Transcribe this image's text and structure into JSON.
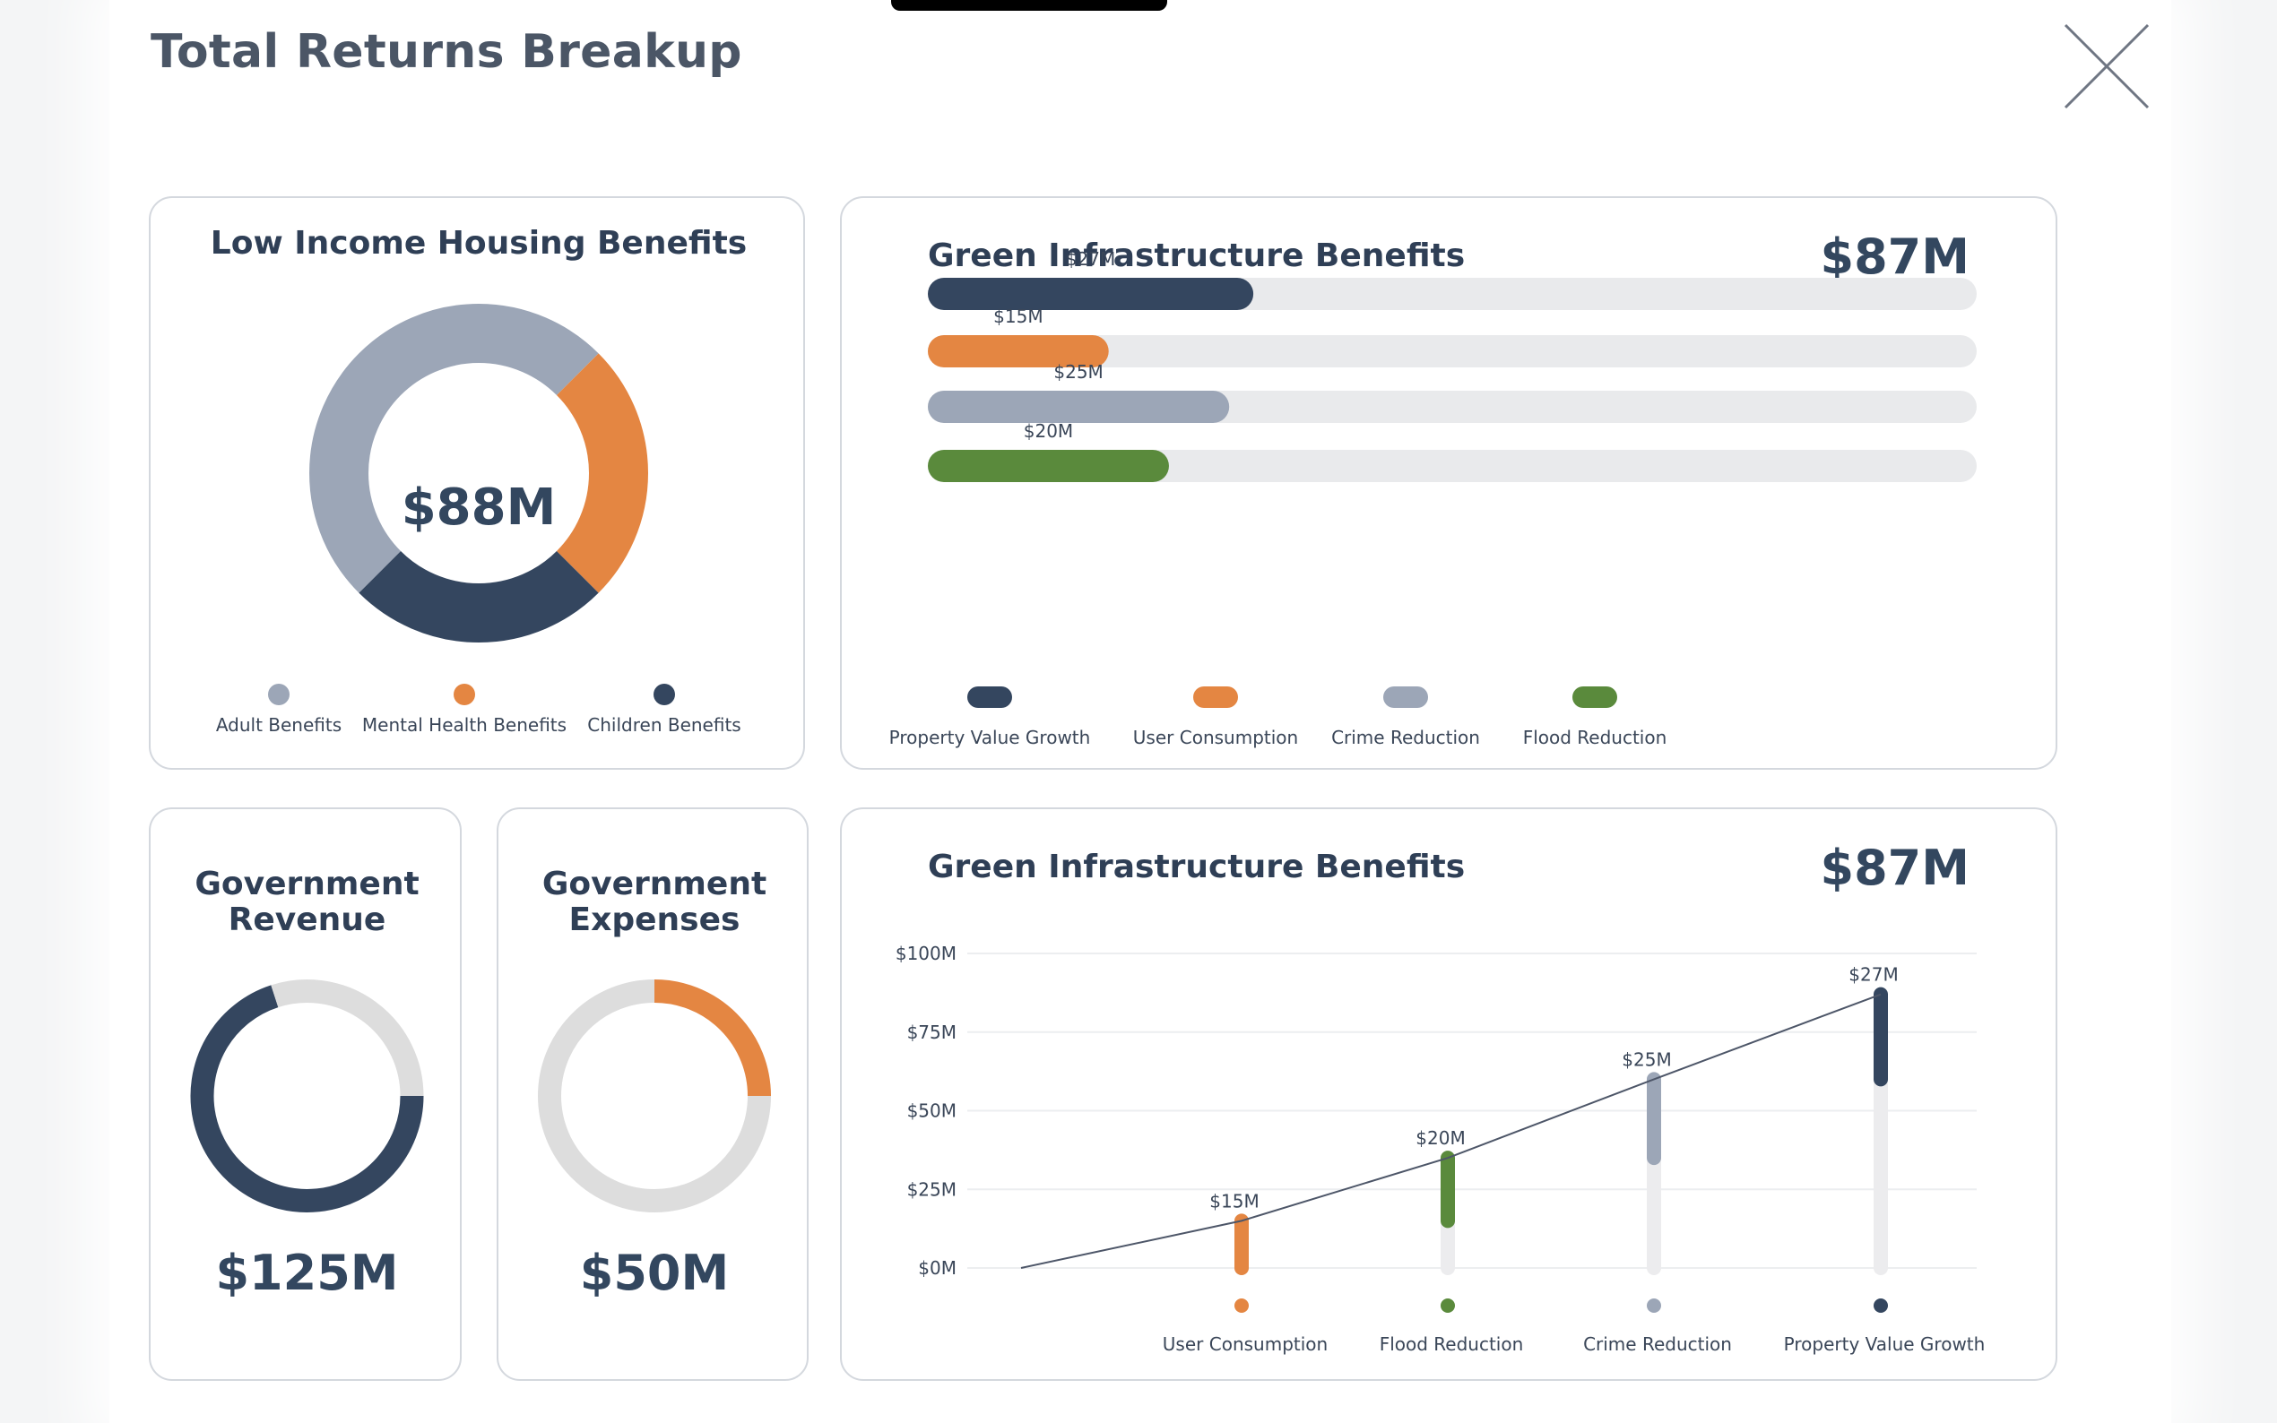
{
  "page": {
    "title": "Total Returns Breakup"
  },
  "colors": {
    "navy": "#34465f",
    "orange": "#e48642",
    "gray": "#9ca6b7",
    "green": "#5a8a3c",
    "track": "#e9eaec",
    "ring_track": "#dddddd"
  },
  "housing": {
    "title": "Low Income Housing Benefits",
    "total": "$88M",
    "legend": [
      {
        "label": "Adult Benefits",
        "color": "#9ca6b7"
      },
      {
        "label": "Mental Health Benefits",
        "color": "#e48642"
      },
      {
        "label": "Children Benefits",
        "color": "#34465f"
      }
    ]
  },
  "green_bars": {
    "title": "Green Infrastructure Benefits",
    "total": "$87M",
    "legend": [
      {
        "label": "Property Value Growth",
        "color": "#34465f"
      },
      {
        "label": "User Consumption",
        "color": "#e48642"
      },
      {
        "label": "Crime Reduction",
        "color": "#9ca6b7"
      },
      {
        "label": "Flood Reduction",
        "color": "#5a8a3c"
      }
    ]
  },
  "gov_revenue": {
    "title_line1": "Government",
    "title_line2": "Revenue",
    "total": "$125M",
    "color": "#34465f"
  },
  "gov_expenses": {
    "title_line1": "Government",
    "title_line2": "Expenses",
    "total": "$50M",
    "color": "#e48642"
  },
  "green_line": {
    "title": "Green Infrastructure Benefits",
    "total": "$87M",
    "y_ticks": [
      "$100M",
      "$75M",
      "$50M",
      "$25M",
      "$0M"
    ]
  },
  "chart_data": [
    {
      "type": "pie",
      "categories": [
        "Adult Benefits",
        "Mental Health Benefits",
        "Children Benefits"
      ],
      "values": [
        50,
        25,
        25
      ],
      "colors": [
        "#9ca6b7",
        "#e48642",
        "#34465f"
      ],
      "title": "Low Income Housing Benefits",
      "center_label": "$88M"
    },
    {
      "type": "bar",
      "orientation": "horizontal",
      "title": "Green Infrastructure Benefits",
      "categories": [
        "Property Value Growth",
        "User Consumption",
        "Crime Reduction",
        "Flood Reduction"
      ],
      "values": [
        27,
        15,
        25,
        20
      ],
      "value_labels": [
        "$27M",
        "$15M",
        "$25M",
        "$20M"
      ],
      "colors": [
        "#34465f",
        "#e48642",
        "#9ca6b7",
        "#5a8a3c"
      ],
      "xlim": [
        0,
        87
      ],
      "total_label": "$87M"
    },
    {
      "type": "pie",
      "title": "Government Revenue",
      "values": [
        70,
        30
      ],
      "colors": [
        "#34465f",
        "#dddddd"
      ],
      "center_label": "$125M"
    },
    {
      "type": "pie",
      "title": "Government Expenses",
      "values": [
        25,
        75
      ],
      "colors": [
        "#e48642",
        "#dddddd"
      ],
      "center_label": "$50M"
    },
    {
      "type": "line",
      "title": "Green Infrastructure Benefits",
      "categories": [
        "User Consumption",
        "Flood Reduction",
        "Crime Reduction",
        "Property Value Growth"
      ],
      "values": [
        15,
        20,
        25,
        27
      ],
      "value_labels": [
        "$15M",
        "$20M",
        "$25M",
        "$27M"
      ],
      "cumulative": [
        15,
        35,
        60,
        87
      ],
      "colors": [
        "#e48642",
        "#5a8a3c",
        "#9ca6b7",
        "#34465f"
      ],
      "ylim": [
        0,
        100
      ],
      "y_ticks": [
        100,
        75,
        50,
        25,
        0
      ],
      "y_tick_labels": [
        "$100M",
        "$75M",
        "$50M",
        "$25M",
        "$0M"
      ],
      "grid": true,
      "total_label": "$87M"
    }
  ]
}
